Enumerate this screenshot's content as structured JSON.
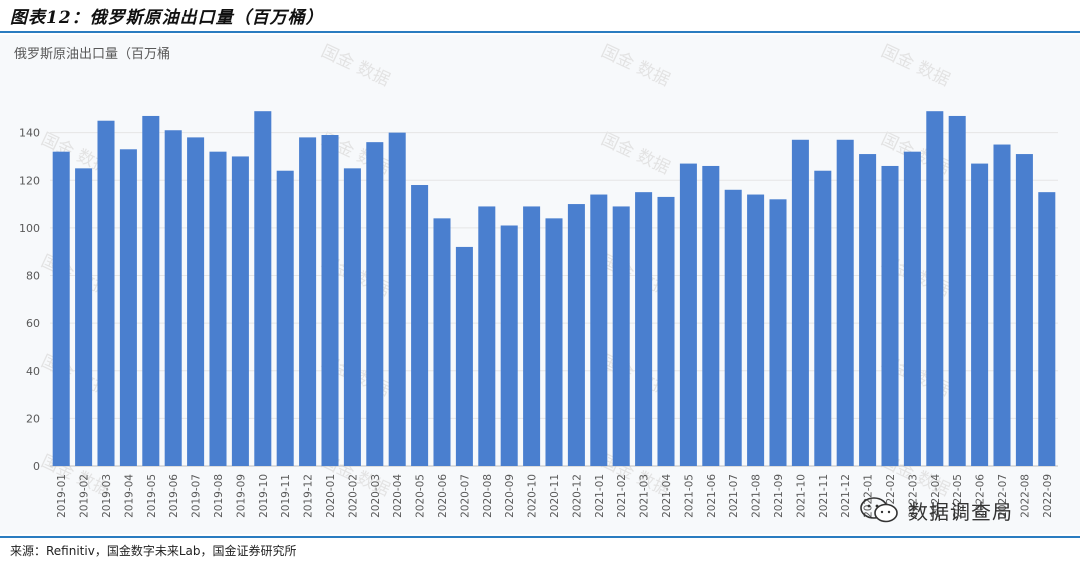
{
  "figure": {
    "title": "图表12：俄罗斯原油出口量（百万桶）",
    "source": "来源：Refinitiv，国金数字未来Lab，国金证券研究所"
  },
  "watermark": {
    "text": "国金 数据",
    "brand": "数据调查局"
  },
  "colors": {
    "bar": "#4a7fcf",
    "accent": "#2a7cc0",
    "grid": "#e6e6e6"
  },
  "chart_data": {
    "type": "bar",
    "title": "俄罗斯原油出口量（百万桶",
    "xlabel": "",
    "ylabel": "",
    "ylim": [
      0,
      160
    ],
    "yticks": [
      0,
      20,
      40,
      60,
      80,
      100,
      120,
      140
    ],
    "grid": true,
    "categories": [
      "2019-01",
      "2019-02",
      "2019-03",
      "2019-04",
      "2019-05",
      "2019-06",
      "2019-07",
      "2019-08",
      "2019-09",
      "2019-10",
      "2019-11",
      "2019-12",
      "2020-01",
      "2020-02",
      "2020-03",
      "2020-04",
      "2020-05",
      "2020-06",
      "2020-07",
      "2020-08",
      "2020-09",
      "2020-10",
      "2020-11",
      "2020-12",
      "2021-01",
      "2021-02",
      "2021-03",
      "2021-04",
      "2021-05",
      "2021-06",
      "2021-07",
      "2021-08",
      "2021-09",
      "2021-10",
      "2021-11",
      "2021-12",
      "2022-01",
      "2022-02",
      "2022-03",
      "2022-04",
      "2022-05",
      "2022-06",
      "2022-07",
      "2022-08",
      "2022-09"
    ],
    "values": [
      132,
      125,
      145,
      133,
      147,
      141,
      138,
      132,
      130,
      149,
      124,
      138,
      139,
      125,
      136,
      140,
      118,
      104,
      92,
      109,
      101,
      109,
      104,
      110,
      114,
      109,
      115,
      113,
      127,
      126,
      116,
      114,
      112,
      137,
      124,
      137,
      131,
      126,
      132,
      149,
      147,
      127,
      135,
      131,
      115
    ]
  }
}
